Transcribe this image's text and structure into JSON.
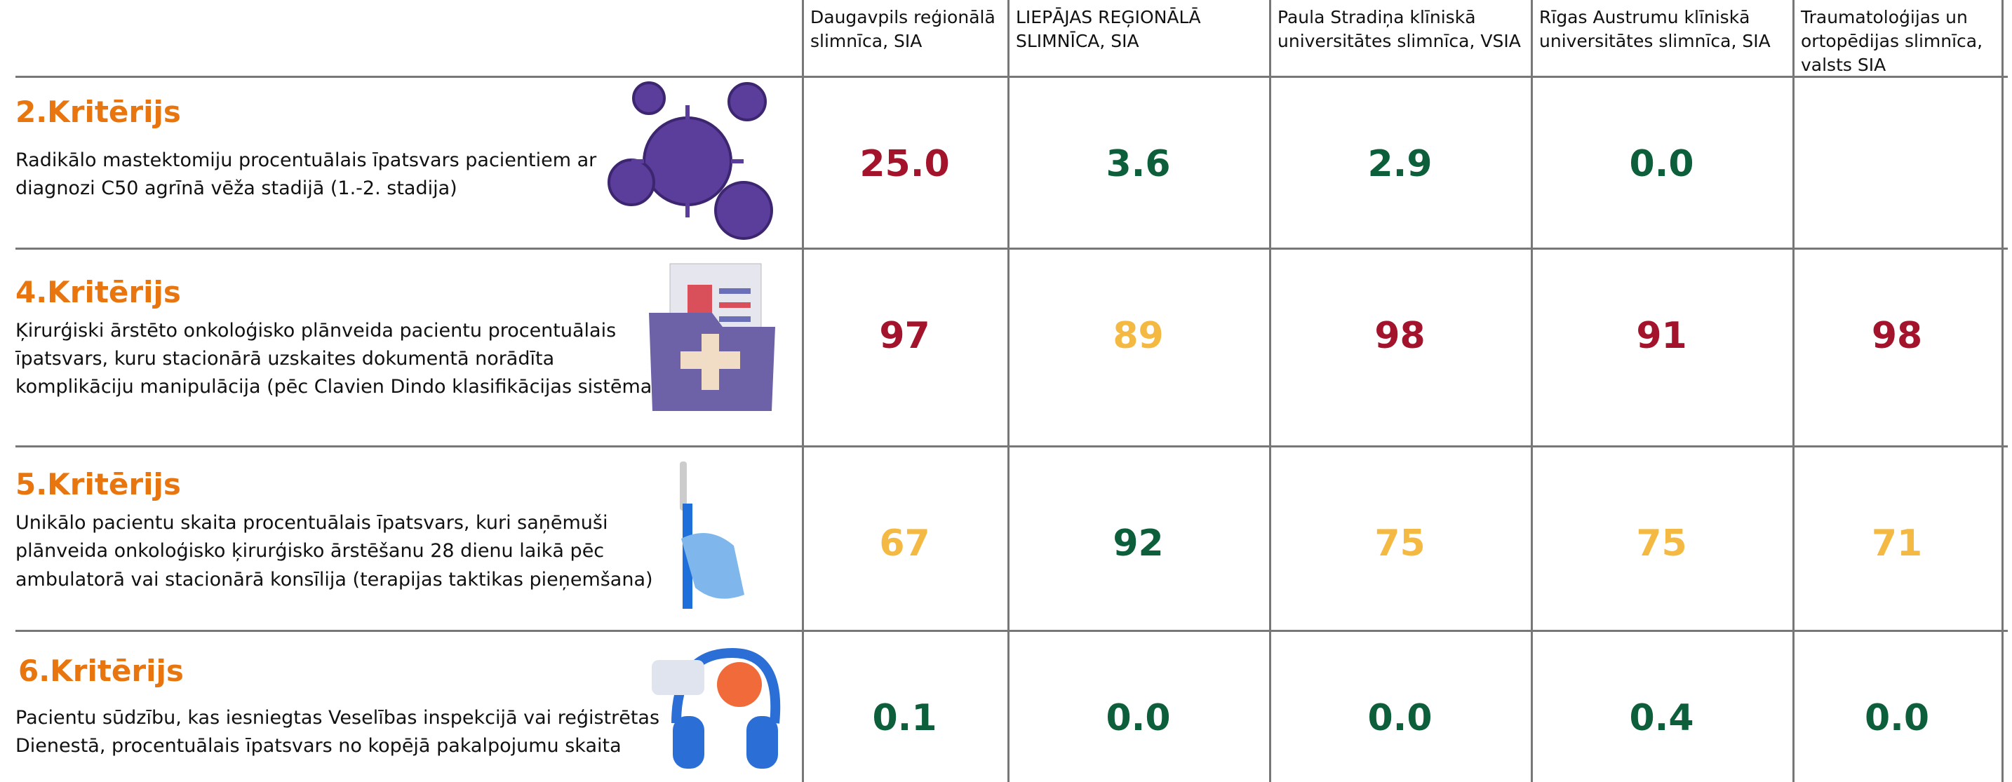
{
  "header": {
    "hospitals": [
      "Daugavpils reģionālā slimnīca, SIA",
      "LIEPĀJAS REĢIONĀLĀ SLIMNĪCA, SIA",
      "Paula Stradiņa klīniskā universitātes slimnīca, VSIA",
      "Rīgas Austrumu klīniskā universitātes slimnīca, SIA",
      "Traumatoloģijas un ortopēdijas slimnīca, valsts SIA"
    ]
  },
  "table": {
    "rows": [
      {
        "title": "2.Kritērijs",
        "description": [
          "Radikālo mastektomiju procentuālais īpatsvars pacientiem ar",
          "diagnozi C50 agrīnā vēža stadijā (1.-2. stadija)"
        ],
        "cells": [
          {
            "text": "25.0",
            "color": "#a3132b"
          },
          {
            "text": "3.6",
            "color": "#0d5e3a"
          },
          {
            "text": "2.9",
            "color": "#0d5e3a"
          },
          {
            "text": "0.0",
            "color": "#0d5e3a"
          },
          null
        ]
      },
      {
        "title": "4.Kritērijs",
        "description": [
          "Ķirurģiski ārstēto onkoloģisko plānveida pacientu procentuālais",
          "īpatsvars, kuru stacionārā uzskaites dokumentā norādīta",
          "komplikāciju manipulācija (pēc Clavien Dindo klasifikācijas sistēmas)"
        ],
        "cells": [
          {
            "text": "97",
            "color": "#a3132b"
          },
          {
            "text": "89",
            "color": "#f4b942"
          },
          {
            "text": "98",
            "color": "#a3132b"
          },
          {
            "text": "91",
            "color": "#a3132b"
          },
          {
            "text": "98",
            "color": "#a3132b"
          }
        ]
      },
      {
        "title": "5.Kritērijs",
        "description": [
          "Unikālo pacientu skaita procentuālais īpatsvars, kuri saņēmuši",
          "plānveida onkoloģisko ķirurģisko ārstēšanu  28 dienu laikā pēc",
          "ambulatorā vai stacionārā konsīlija (terapijas taktikas pieņemšana)"
        ],
        "cells": [
          {
            "text": "67",
            "color": "#f4b942"
          },
          {
            "text": "92",
            "color": "#0d5e3a"
          },
          {
            "text": "75",
            "color": "#f4b942"
          },
          {
            "text": "75",
            "color": "#f4b942"
          },
          {
            "text": "71",
            "color": "#f4b942"
          }
        ]
      },
      {
        "title": "6.Kritērijs",
        "description": [
          "Pacientu sūdzību, kas iesniegtas Veselības inspekcijā vai reģistrētas",
          "Dienestā, procentuālais īpatsvars no kopējā pakalpojumu skaita"
        ],
        "cells": [
          {
            "text": "0.1",
            "color": "#0d5e3a"
          },
          {
            "text": "0.0",
            "color": "#0d5e3a"
          },
          {
            "text": "0.0",
            "color": "#0d5e3a"
          },
          {
            "text": "0.4",
            "color": "#0d5e3a"
          },
          {
            "text": "0.0",
            "color": "#0d5e3a"
          }
        ]
      }
    ]
  }
}
